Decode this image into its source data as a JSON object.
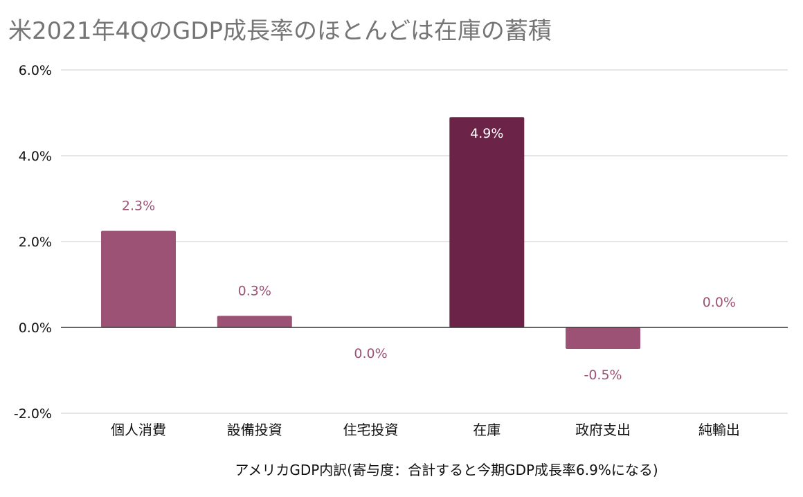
{
  "chart_data": {
    "type": "bar",
    "title": "米2021年4QのGDP成長率のほとんどは在庫の蓄積",
    "xlabel": "アメリカGDP内訳(寄与度：合計すると今期GDP成長率6.9%になる)",
    "ylabel": "",
    "ylim": [
      -2.0,
      6.0
    ],
    "yticks": [
      6.0,
      4.0,
      2.0,
      0.0,
      -2.0
    ],
    "ytick_labels": [
      "6.0%",
      "4.0%",
      "2.0%",
      "0.0%",
      "-2.0%"
    ],
    "categories": [
      "個人消費",
      "設備投資",
      "住宅投資",
      "在庫",
      "政府支出",
      "純輸出"
    ],
    "values": [
      2.25,
      0.27,
      0.0,
      4.9,
      -0.5,
      0.0
    ],
    "data_labels": [
      "2.3%",
      "0.3%",
      "0.0%",
      "4.9%",
      "-0.5%",
      "0.0%"
    ],
    "highlight_index": 3,
    "grid": true,
    "colors": {
      "bar": "#9c5275",
      "highlight": "#6b2347",
      "label": "#9c5275",
      "label_inside": "#ffffff",
      "grid": "#cccccc",
      "zero_line": "#333333"
    }
  }
}
